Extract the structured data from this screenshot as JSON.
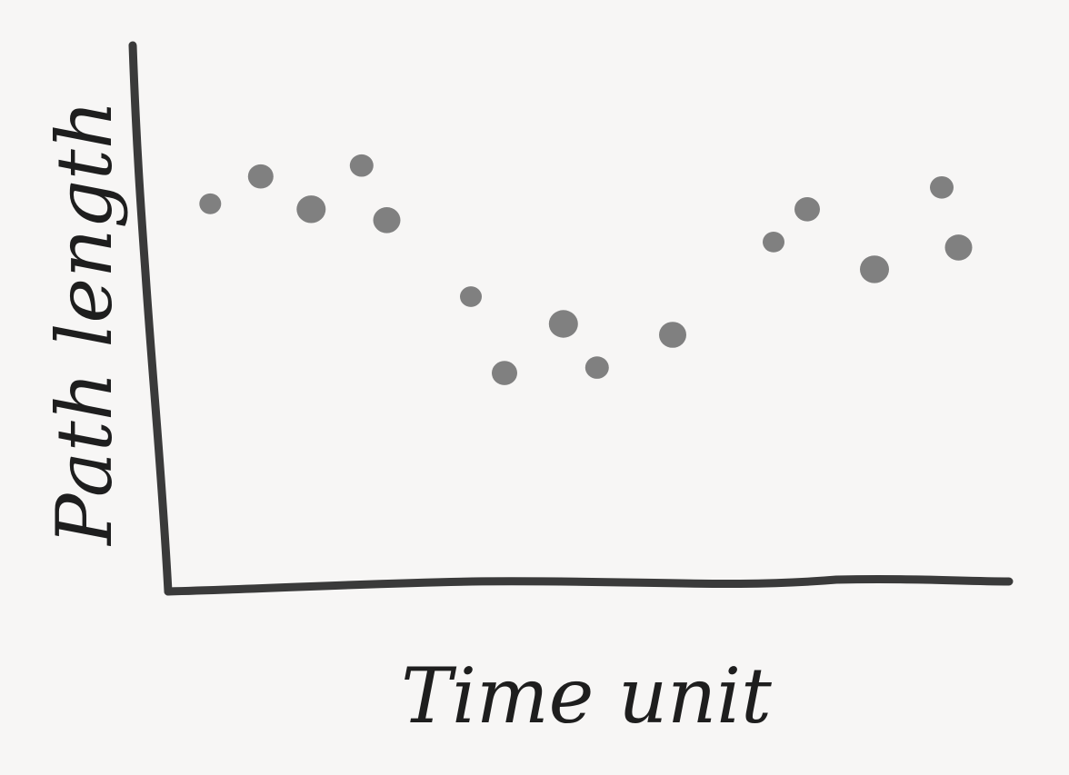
{
  "chart_data": {
    "type": "scatter",
    "title": "",
    "xlabel": "Time unit",
    "ylabel": "Path length",
    "grid": false,
    "legend": "none",
    "xlim": [
      0,
      100
    ],
    "ylim": [
      0,
      100
    ],
    "series": [
      {
        "points": [
          {
            "x": 5,
            "y": 71
          },
          {
            "x": 11,
            "y": 76
          },
          {
            "x": 17,
            "y": 70
          },
          {
            "x": 23,
            "y": 78
          },
          {
            "x": 26,
            "y": 68
          },
          {
            "x": 36,
            "y": 54
          },
          {
            "x": 40,
            "y": 40
          },
          {
            "x": 47,
            "y": 49
          },
          {
            "x": 51,
            "y": 41
          },
          {
            "x": 60,
            "y": 47
          },
          {
            "x": 72,
            "y": 64
          },
          {
            "x": 76,
            "y": 70
          },
          {
            "x": 84,
            "y": 59
          },
          {
            "x": 92,
            "y": 74
          },
          {
            "x": 94,
            "y": 63
          }
        ]
      }
    ],
    "colors": {
      "background": "#f7f6f5",
      "axis": "#3a3a3a",
      "points": "#808080",
      "text": "#1e1e1e"
    }
  }
}
